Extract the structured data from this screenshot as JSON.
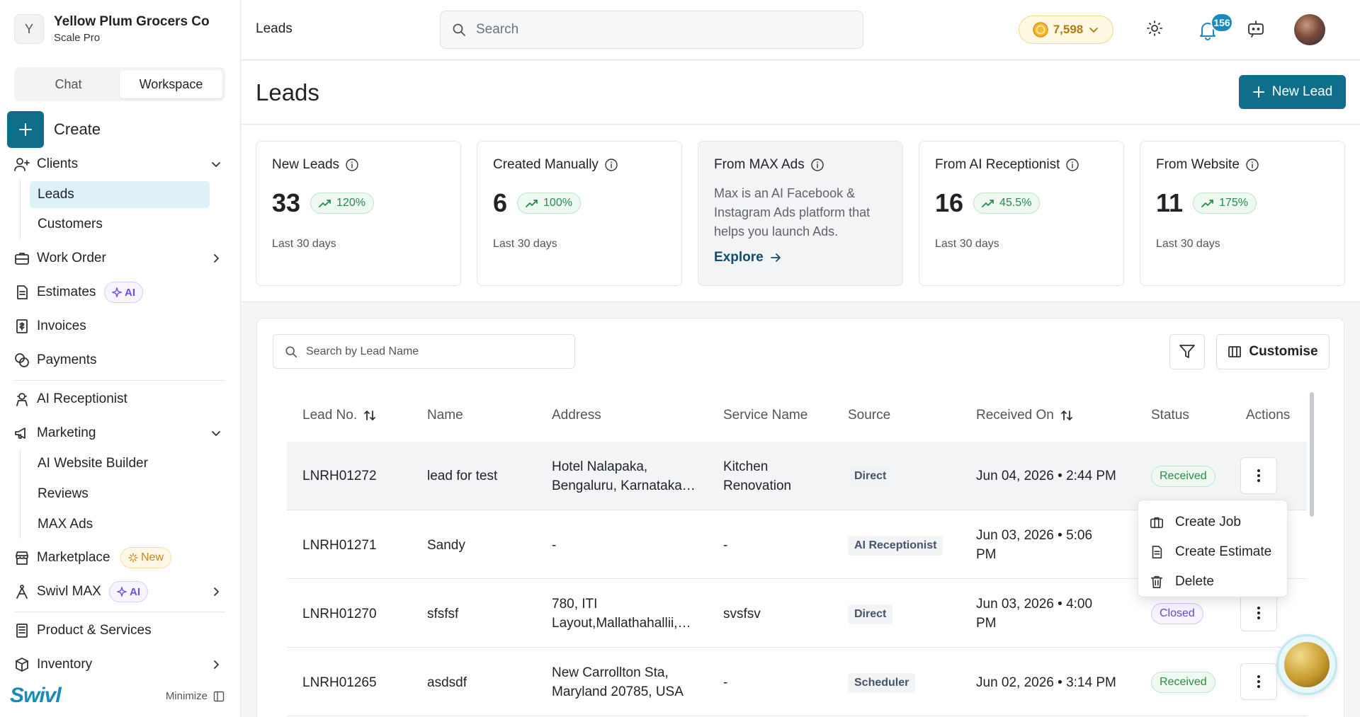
{
  "org": {
    "initial": "Y",
    "name": "Yellow Plum Grocers Co",
    "plan": "Scale Pro"
  },
  "mode_tabs": [
    "Chat",
    "Workspace"
  ],
  "sidebar": {
    "create_label": "Create",
    "clients": "Clients",
    "clients_sub": [
      "Leads",
      "Customers"
    ],
    "work_order": "Work Order",
    "estimates": "Estimates",
    "ai_badge": "AI",
    "invoices": "Invoices",
    "payments": "Payments",
    "ai_receptionist": "AI Receptionist",
    "marketing": "Marketing",
    "marketing_sub": [
      "AI Website Builder",
      "Reviews",
      "MAX Ads"
    ],
    "marketplace": "Marketplace",
    "new_badge": "New",
    "swivl_max": "Swivl MAX",
    "product_services": "Product & Services",
    "inventory": "Inventory",
    "brand": "Swivl",
    "minimize": "Minimize"
  },
  "topbar": {
    "breadcrumb": "Leads",
    "search_placeholder": "Search",
    "coins": "7,598",
    "notifications": "156"
  },
  "page": {
    "title": "Leads",
    "new_lead": "New Lead"
  },
  "stats": [
    {
      "title": "New Leads",
      "value": "33",
      "change": "120%",
      "period": "Last 30 days"
    },
    {
      "title": "Created Manually",
      "value": "6",
      "change": "100%",
      "period": "Last 30 days"
    },
    {
      "title": "From MAX Ads",
      "description": "Max is an AI Facebook & Instagram Ads platform that helps you launch Ads.",
      "link": "Explore"
    },
    {
      "title": "From AI Receptionist",
      "value": "16",
      "change": "45.5%",
      "period": "Last 30 days"
    },
    {
      "title": "From Website",
      "value": "11",
      "change": "175%",
      "period": "Last 30 days"
    }
  ],
  "table": {
    "search_placeholder": "Search by Lead Name",
    "customise": "Customise",
    "columns": [
      "Lead No.",
      "Name",
      "Address",
      "Service Name",
      "Source",
      "Received On",
      "Status",
      "Actions"
    ],
    "rows": [
      {
        "lead_no": "LNRH01272",
        "name": "lead for test",
        "address_1": "Hotel Nalapaka,",
        "address_2": "Bengaluru, Karnataka…",
        "service_1": "Kitchen",
        "service_2": "Renovation",
        "source": "Direct",
        "received_1": "Jun 04, 2026 • 2:44 PM",
        "received_2": "",
        "status": "Received"
      },
      {
        "lead_no": "LNRH01271",
        "name": "Sandy",
        "address_1": "-",
        "address_2": "",
        "service_1": "-",
        "service_2": "",
        "source": "AI Receptionist",
        "received_1": "Jun 03, 2026 • 5:06",
        "received_2": "PM",
        "status": ""
      },
      {
        "lead_no": "LNRH01270",
        "name": "sfsfsf",
        "address_1": "780, ITI",
        "address_2": "Layout,Mallathahallii,…",
        "service_1": "svsfsv",
        "service_2": "",
        "source": "Direct",
        "received_1": "Jun 03, 2026 • 4:00",
        "received_2": "PM",
        "status": "Closed"
      },
      {
        "lead_no": "LNRH01265",
        "name": "asdsdf",
        "address_1": "New Carrollton Sta,",
        "address_2": "Maryland 20785, USA",
        "service_1": "-",
        "service_2": "",
        "source": "Scheduler",
        "received_1": "Jun 02, 2026 • 3:14 PM",
        "received_2": "",
        "status": "Received"
      }
    ]
  },
  "action_menu": [
    "Create Job",
    "Create Estimate",
    "Delete"
  ],
  "colors": {
    "primary": "#0f6e8a",
    "brand": "#1a8ab8",
    "received": "#2a8a4a",
    "closed": "#6a45c7",
    "ai_badge": "#6f4be3",
    "new_badge": "#c5861b"
  }
}
